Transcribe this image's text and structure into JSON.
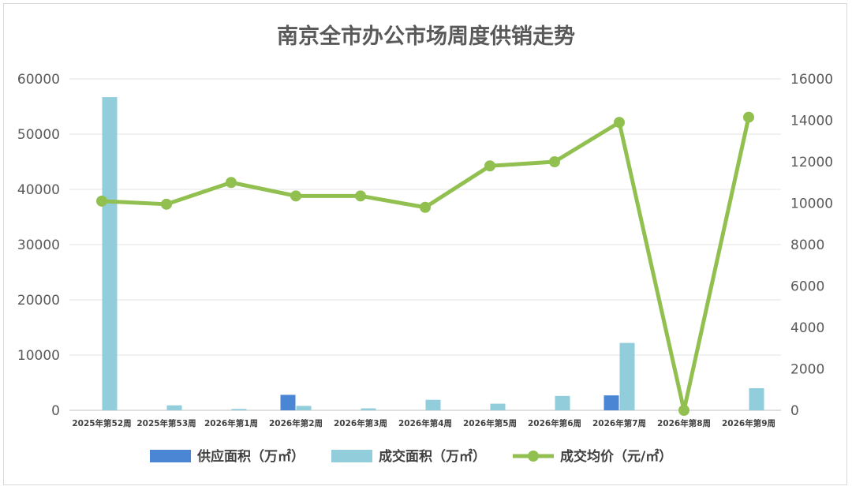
{
  "chart_data": {
    "type": "bar",
    "title": "南京全市办公市场周度供销走势",
    "categories": [
      "2025年第52周",
      "2025年第53周",
      "2026年第1周",
      "2026年第2周",
      "2026年第3周",
      "2026年第4周",
      "2026年第5周",
      "2026年第6周",
      "2026年第7周",
      "2026年第8周",
      "2026年第9周"
    ],
    "left_axis": {
      "ylim": [
        0,
        60000
      ],
      "ticks": [
        "0",
        "10000",
        "20000",
        "30000",
        "40000",
        "50000",
        "60000"
      ]
    },
    "right_axis": {
      "ylim": [
        0,
        16000
      ],
      "ticks": [
        "0",
        "2000",
        "4000",
        "6000",
        "8000",
        "10000",
        "12000",
        "14000",
        "16000"
      ]
    },
    "grid": true,
    "legend_position": "bottom",
    "series": [
      {
        "name": "供应面积（万㎡）",
        "type": "bar",
        "axis": "left",
        "color": "#4a86d4",
        "values": [
          0,
          0,
          0,
          2800,
          0,
          0,
          0,
          0,
          2700,
          0,
          0
        ]
      },
      {
        "name": "成交面积（万㎡）",
        "type": "bar",
        "axis": "left",
        "color": "#92cddc",
        "values": [
          56700,
          900,
          250,
          800,
          350,
          1900,
          1200,
          2600,
          12200,
          0,
          4000
        ]
      },
      {
        "name": "成交均价（元/㎡）",
        "type": "line",
        "axis": "right",
        "color": "#92c050",
        "values": [
          10100,
          9950,
          11000,
          10350,
          10350,
          9800,
          11800,
          12000,
          13900,
          0,
          14150
        ]
      }
    ]
  }
}
